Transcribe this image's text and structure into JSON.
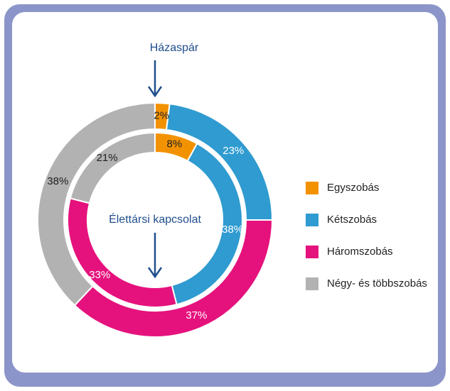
{
  "chart_data": {
    "type": "donut",
    "categories": [
      "Egyszobás",
      "Kétszobás",
      "Háromszobás",
      "Négy- és többszobás"
    ],
    "colors": [
      "#f39200",
      "#2f9bd0",
      "#e5127d",
      "#b2b2b2"
    ],
    "label_colors": [
      "#222222",
      "#ffffff",
      "#ffffff",
      "#222222"
    ],
    "series": [
      {
        "name": "Házaspár",
        "values": [
          2,
          23,
          37,
          38
        ],
        "value_labels": [
          "2%",
          "23%",
          "37%",
          "38%"
        ]
      },
      {
        "name": "Élettársi kapcsolat",
        "values": [
          8,
          38,
          33,
          21
        ],
        "value_labels": [
          "8%",
          "38%",
          "33%",
          "21%"
        ]
      }
    ]
  }
}
